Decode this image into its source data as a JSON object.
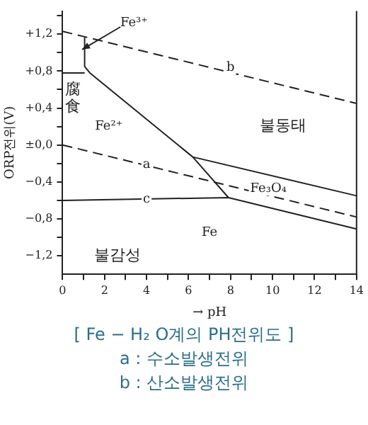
{
  "chart_data": {
    "type": "line",
    "title": "[ Fe − H₂ O계의 PH전위도 ]",
    "xlabel": "→ pH",
    "ylabel": "ORP전위(V)",
    "xlim": [
      0,
      14
    ],
    "ylim": [
      -1.4,
      1.45
    ],
    "xticks": [
      0,
      {
        "value": 1,
        "label": null
      },
      2,
      {
        "value": 3,
        "label": null
      },
      4,
      {
        "value": 5,
        "label": null
      },
      6,
      {
        "value": 7,
        "label": null
      },
      8,
      {
        "value": 9,
        "label": null
      },
      10,
      {
        "value": 11,
        "label": null
      },
      12,
      {
        "value": 13,
        "label": null
      },
      14
    ],
    "yticks": [
      {
        "value": -1.2,
        "label": "−1,2"
      },
      {
        "value": -1.0,
        "label": null
      },
      {
        "value": -0.8,
        "label": "−0,8"
      },
      {
        "value": -0.6,
        "label": null
      },
      {
        "value": -0.4,
        "label": "−0,4"
      },
      {
        "value": -0.2,
        "label": null
      },
      {
        "value": 0,
        "label": "±0,0"
      },
      {
        "value": 0.2,
        "label": null
      },
      {
        "value": 0.4,
        "label": "+0,4"
      },
      {
        "value": 0.6,
        "label": null
      },
      {
        "value": 0.8,
        "label": "+0,8"
      },
      {
        "value": 1.0,
        "label": null
      },
      {
        "value": 1.2,
        "label": "+1,2"
      },
      {
        "value": 1.4,
        "label": null
      }
    ],
    "grid": false,
    "legend": false,
    "marker": "none",
    "series": [
      {
        "color": "#222222",
        "line_style": "dashed",
        "x": [
          0,
          14
        ],
        "values": [
          1.23,
          0.45
        ]
      },
      {
        "color": "#222222",
        "line_style": "dashed",
        "x": [
          0,
          14
        ],
        "values": [
          0,
          -0.78
        ]
      },
      {
        "color": "#222222",
        "line_style": "solid",
        "x": [
          0,
          7.9,
          14
        ],
        "values": [
          -0.6,
          -0.57,
          -0.91
        ]
      },
      {
        "color": "#222222",
        "line_style": "solid",
        "x": [
          1.05,
          1.05,
          1.3,
          6.2,
          7.9
        ],
        "values": [
          1.16,
          0.85,
          0.78,
          -0.13,
          -0.57
        ]
      },
      {
        "color": "#222222",
        "line_style": "solid",
        "x": [
          0,
          1.05
        ],
        "values": [
          0.78,
          0.78
        ]
      },
      {
        "color": "#222222",
        "line_style": "solid",
        "x": [
          6.2,
          14
        ],
        "values": [
          -0.13,
          -0.55
        ]
      }
    ],
    "annotations": [
      "Fe³⁺",
      "腐食",
      "Fe²⁺",
      "불동태",
      "Fe₃O₄",
      "Fe",
      "불감성",
      "a",
      "b",
      "c",
      "a : 수소발생전위",
      "b : 산소발생전위"
    ]
  }
}
